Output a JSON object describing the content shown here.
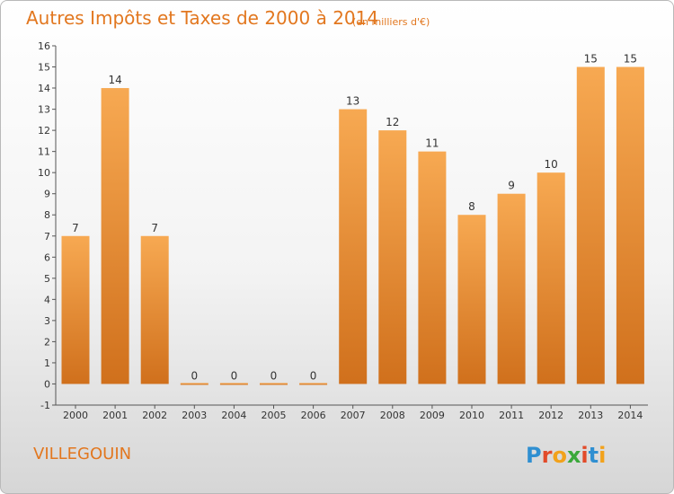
{
  "header": {
    "title": "Autres Impôts et Taxes de 2000 à 2014",
    "subtitle": "(en milliers d'€)"
  },
  "footer": {
    "commune": "VILLEGOUIN",
    "logo": [
      "P",
      "r",
      "o",
      "x",
      "i",
      "t",
      "i"
    ]
  },
  "colors": {
    "title": "#e2771f",
    "bar_light": "#f7a952",
    "bar_dark": "#d0701c",
    "axis": "#555555",
    "logo": [
      "#2f8fd1",
      "#e24b2a",
      "#f2a21b",
      "#3aa83a",
      "#e24b2a",
      "#2f8fd1",
      "#f2a21b"
    ]
  },
  "chart_data": {
    "type": "bar",
    "categories": [
      "2000",
      "2001",
      "2002",
      "2003",
      "2004",
      "2005",
      "2006",
      "2007",
      "2008",
      "2009",
      "2010",
      "2011",
      "2012",
      "2013",
      "2014"
    ],
    "values": [
      7,
      14,
      7,
      0,
      0,
      0,
      0,
      13,
      12,
      11,
      8,
      9,
      10,
      15,
      15
    ],
    "data_labels": [
      "7",
      "14",
      "7",
      "0",
      "0",
      "0",
      "0",
      "13",
      "12",
      "11",
      "8",
      "9",
      "10",
      "15",
      "15"
    ],
    "yticks": [
      -1,
      0,
      1,
      2,
      3,
      4,
      5,
      6,
      7,
      8,
      9,
      10,
      11,
      12,
      13,
      14,
      15,
      16
    ],
    "ylim": [
      -1,
      16
    ],
    "grid": false,
    "legend": "none"
  }
}
